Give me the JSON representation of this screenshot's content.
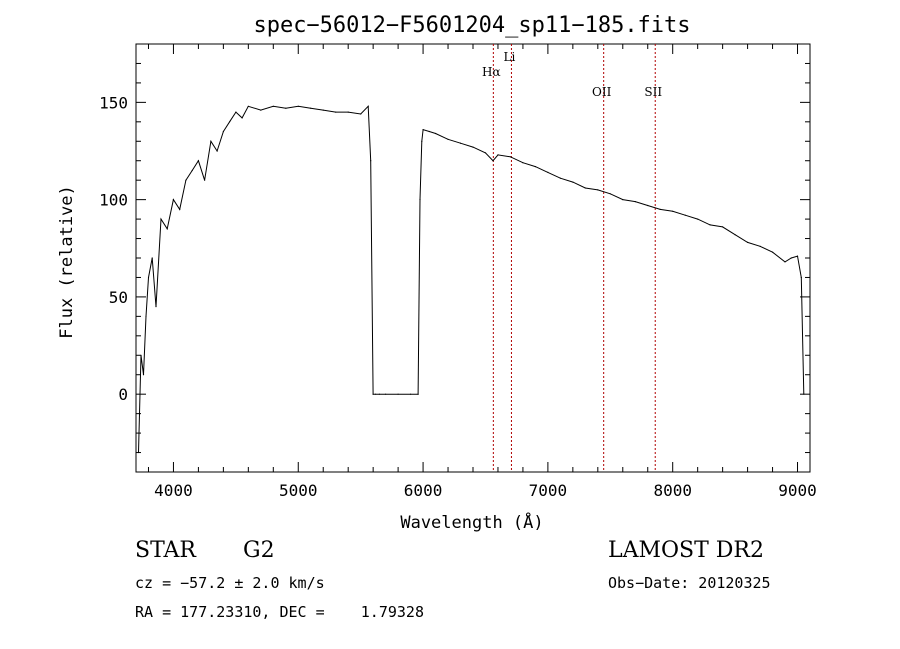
{
  "chart_data": {
    "type": "line",
    "title": "spec−56012−F5601204_sp11−185.fits",
    "xlabel": "Wavelength (Å)",
    "ylabel": "Flux (relative)",
    "xlim": [
      3700,
      9100
    ],
    "ylim": [
      -40,
      180
    ],
    "x_ticks": [
      4000,
      5000,
      6000,
      7000,
      8000,
      9000
    ],
    "y_ticks": [
      0,
      50,
      100,
      150
    ],
    "grid": false,
    "series": [
      {
        "x": [
          3720,
          3740,
          3760,
          3780,
          3800,
          3830,
          3860,
          3900,
          3950,
          4000,
          4050,
          4100,
          4150,
          4200,
          4250,
          4300,
          4350,
          4400,
          4450,
          4500,
          4550,
          4600,
          4700,
          4800,
          4900,
          5000,
          5100,
          5200,
          5300,
          5400,
          5500,
          5560,
          5580,
          5600,
          5620,
          5650,
          5700,
          5800,
          5900,
          5960,
          5975,
          5990,
          6000,
          6050,
          6100,
          6200,
          6300,
          6400,
          6500,
          6560,
          6600,
          6700,
          6800,
          6900,
          7000,
          7100,
          7200,
          7300,
          7400,
          7500,
          7600,
          7700,
          7800,
          7900,
          8000,
          8100,
          8200,
          8300,
          8400,
          8500,
          8600,
          8700,
          8800,
          8900,
          8950,
          9000,
          9030,
          9050
        ],
        "y": [
          -30,
          20,
          10,
          40,
          60,
          70,
          45,
          90,
          85,
          100,
          95,
          110,
          115,
          120,
          110,
          130,
          125,
          135,
          140,
          145,
          142,
          148,
          146,
          148,
          147,
          148,
          147,
          146,
          145,
          145,
          144,
          148,
          120,
          0,
          0,
          0,
          0,
          0,
          0,
          0,
          100,
          130,
          136,
          135,
          134,
          131,
          129,
          127,
          124,
          120,
          123,
          122,
          119,
          117,
          114,
          111,
          109,
          106,
          105,
          103,
          100,
          99,
          97,
          95,
          94,
          92,
          90,
          87,
          86,
          82,
          78,
          76,
          73,
          68,
          70,
          71,
          60,
          0
        ]
      }
    ],
    "lines": [
      {
        "label": "Hα",
        "x": 6563
      },
      {
        "label": "Li",
        "x": 6708
      },
      {
        "label": "OII",
        "x": 7447
      },
      {
        "label": "SII",
        "x": 7860
      }
    ]
  },
  "info": {
    "object_type": "STAR",
    "subclass": "G2",
    "survey": "LAMOST DR2",
    "cz": "cz = −57.2 ± 2.0 km/s",
    "obs_date": "Obs−Date: 20120325",
    "radec": "RA = 177.23310, DEC =    1.79328"
  }
}
